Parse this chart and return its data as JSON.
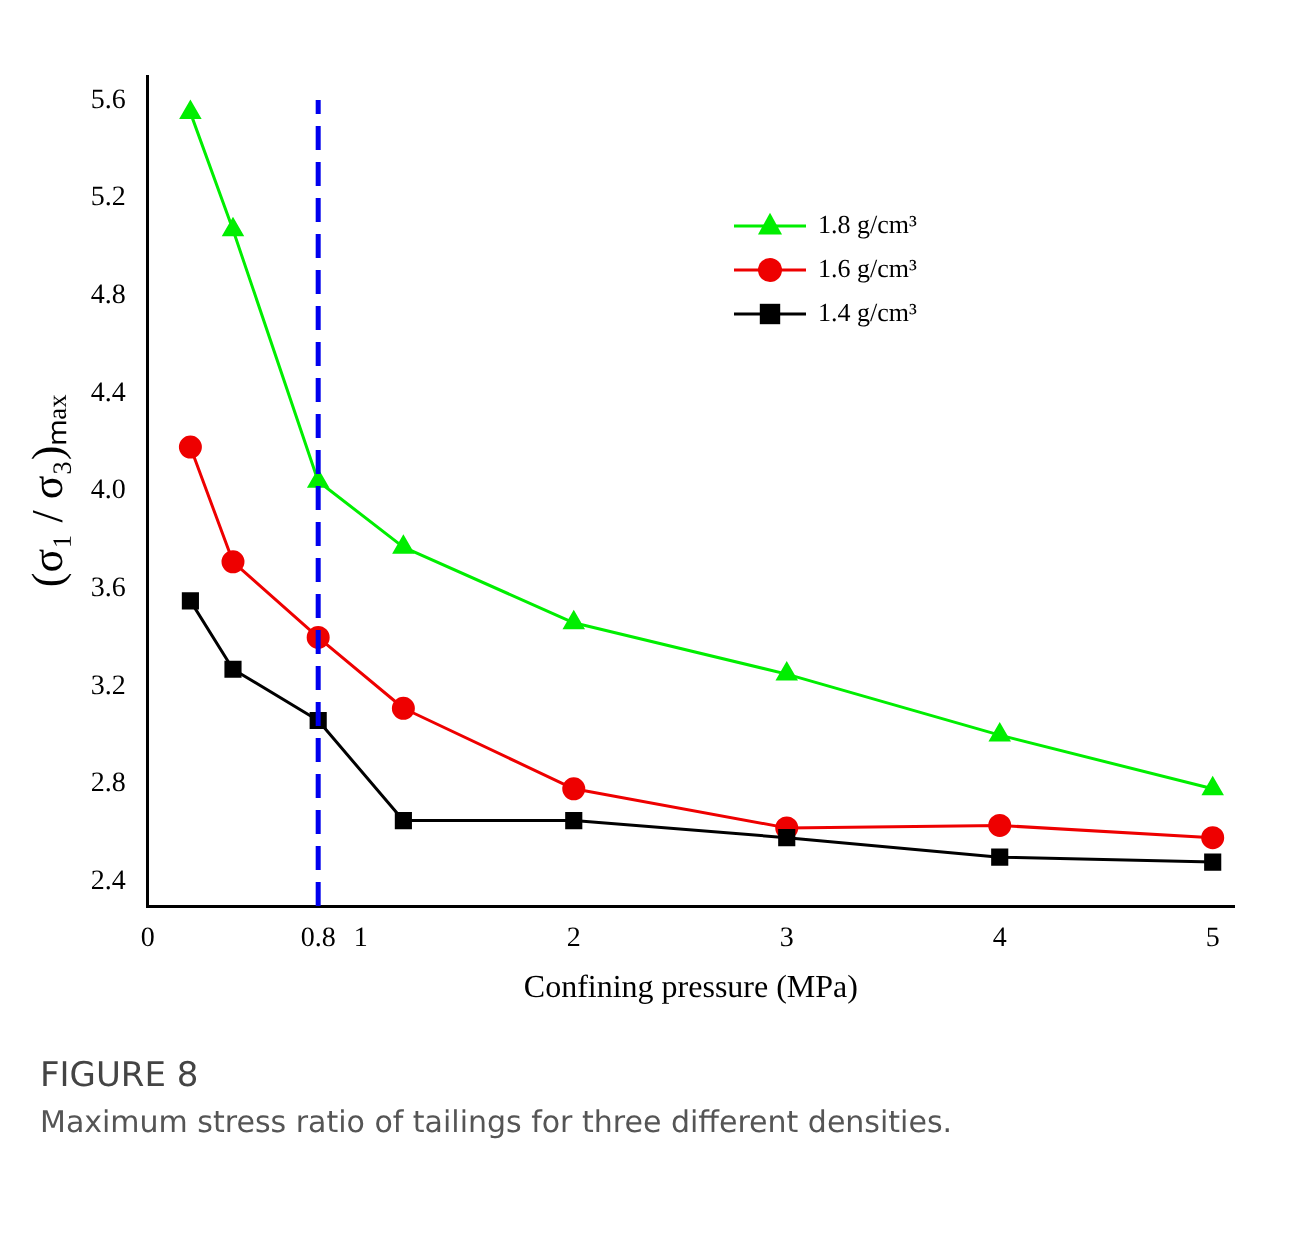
{
  "chart_data": {
    "type": "line",
    "xlabel": "Confining pressure (MPa)",
    "ylabel": "(σ₁ / σ₃)ₘₐₓ",
    "x": [
      0.2,
      0.4,
      0.8,
      1.2,
      2,
      3,
      4,
      5
    ],
    "series": [
      {
        "name": "1.8 g/cm³",
        "color": "#00ee00",
        "marker": "triangle",
        "values": [
          5.55,
          5.07,
          4.04,
          3.77,
          3.46,
          3.25,
          3.0,
          2.78
        ]
      },
      {
        "name": "1.6 g/cm³",
        "color": "#ee0000",
        "marker": "circle",
        "values": [
          4.18,
          3.71,
          3.4,
          3.11,
          2.78,
          2.62,
          2.63,
          2.58
        ]
      },
      {
        "name": "1.4 g/cm³",
        "color": "#000000",
        "marker": "square",
        "values": [
          3.55,
          3.27,
          3.06,
          2.65,
          2.65,
          2.58,
          2.5,
          2.48
        ]
      }
    ],
    "xlim": [
      0,
      5.1
    ],
    "xticks": [
      0,
      0.8,
      1,
      2,
      3,
      4,
      5
    ],
    "ylim": [
      2.3,
      5.7
    ],
    "yticks": [
      2.4,
      2.8,
      3.2,
      3.6,
      {
        "value": 4,
        "label": "4.0"
      },
      4.4,
      4.8,
      5.2,
      5.6
    ],
    "ref_lines": [
      {
        "axis": "x",
        "value": 0.8,
        "color": "#0000ee",
        "line_style": "dashed"
      }
    ],
    "grid": false,
    "legend": "top right",
    "annotations": [
      "FIGURE 8",
      "Maximum stress ratio of tailings for three different densities."
    ]
  }
}
